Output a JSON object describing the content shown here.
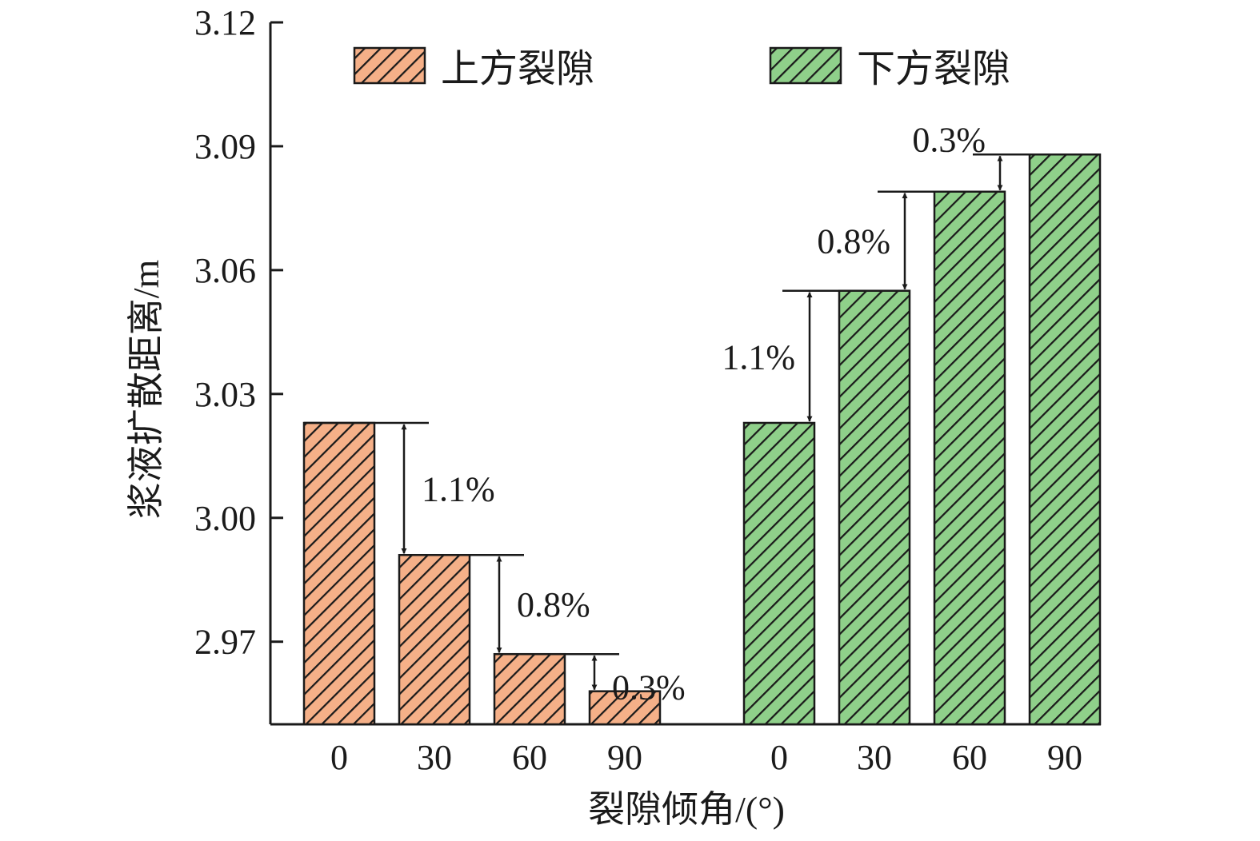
{
  "chart_data": {
    "type": "bar",
    "ylabel": "浆液扩散距离/m",
    "xlabel": "裂隙倾角/(°)",
    "ylim": [
      2.95,
      3.12
    ],
    "yticks": [
      "2.97",
      "3.00",
      "3.03",
      "3.06",
      "3.09",
      "3.12"
    ],
    "grid": false,
    "legend_position": "top",
    "groups": [
      {
        "name": "上方裂隙",
        "color": "#f5b088",
        "categories": [
          "0",
          "30",
          "60",
          "90"
        ],
        "values": [
          3.023,
          2.991,
          2.967,
          2.958
        ],
        "changes": [
          "1.1%",
          "0.8%",
          "0.3%"
        ]
      },
      {
        "name": "下方裂隙",
        "color": "#8fd08a",
        "categories": [
          "0",
          "30",
          "60",
          "90"
        ],
        "values": [
          3.023,
          3.055,
          3.079,
          3.088
        ],
        "changes": [
          "1.1%",
          "0.8%",
          "0.3%"
        ]
      }
    ]
  }
}
